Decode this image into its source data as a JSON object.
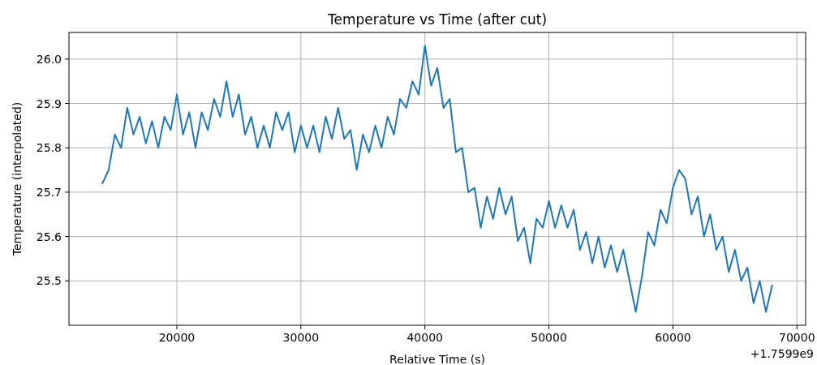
{
  "chart_data": {
    "type": "line",
    "title": "Temperature vs Time (after cut)",
    "xlabel": "Relative Time (s)",
    "ylabel": "Temperature (interpolated)",
    "annotations": [
      "+1.7599e9"
    ],
    "x": [
      14000,
      14500,
      15000,
      15500,
      16000,
      16500,
      17000,
      17500,
      18000,
      18500,
      19000,
      19500,
      20000,
      20500,
      21000,
      21500,
      22000,
      22500,
      23000,
      23500,
      24000,
      24500,
      25000,
      25500,
      26000,
      26500,
      27000,
      27500,
      28000,
      28500,
      29000,
      29500,
      30000,
      30500,
      31000,
      31500,
      32000,
      32500,
      33000,
      33500,
      34000,
      34500,
      35000,
      35500,
      36000,
      36500,
      37000,
      37500,
      38000,
      38500,
      39000,
      39500,
      40000,
      40500,
      41000,
      41500,
      42000,
      42500,
      43000,
      43500,
      44000,
      44500,
      45000,
      45500,
      46000,
      46500,
      47000,
      47500,
      48000,
      48500,
      49000,
      49500,
      50000,
      50500,
      51000,
      51500,
      52000,
      52500,
      53000,
      53500,
      54000,
      54500,
      55000,
      55500,
      56000,
      56500,
      57000,
      57500,
      58000,
      58500,
      59000,
      59500,
      60000,
      60500,
      61000,
      61500,
      62000,
      62500,
      63000,
      63500,
      64000,
      64500,
      65000,
      65500,
      66000,
      66500,
      67000,
      67500,
      68000
    ],
    "series": [
      {
        "color": "#1f77b4",
        "values": [
          25.72,
          25.75,
          25.83,
          25.8,
          25.89,
          25.83,
          25.87,
          25.81,
          25.86,
          25.8,
          25.87,
          25.84,
          25.92,
          25.83,
          25.88,
          25.8,
          25.88,
          25.84,
          25.91,
          25.87,
          25.95,
          25.87,
          25.92,
          25.83,
          25.87,
          25.8,
          25.85,
          25.8,
          25.88,
          25.84,
          25.88,
          25.79,
          25.85,
          25.8,
          25.85,
          25.79,
          25.87,
          25.82,
          25.89,
          25.82,
          25.84,
          25.75,
          25.83,
          25.79,
          25.85,
          25.8,
          25.87,
          25.83,
          25.91,
          25.89,
          25.95,
          25.92,
          26.03,
          25.94,
          25.98,
          25.89,
          25.91,
          25.79,
          25.8,
          25.7,
          25.71,
          25.62,
          25.69,
          25.64,
          25.71,
          25.65,
          25.69,
          25.59,
          25.62,
          25.54,
          25.64,
          25.62,
          25.68,
          25.62,
          25.67,
          25.62,
          25.66,
          25.57,
          25.61,
          25.54,
          25.6,
          25.53,
          25.58,
          25.52,
          25.57,
          25.5,
          25.43,
          25.51,
          25.61,
          25.58,
          25.66,
          25.63,
          25.71,
          25.75,
          25.73,
          25.65,
          25.69,
          25.6,
          25.65,
          25.57,
          25.6,
          25.52,
          25.57,
          25.5,
          25.53,
          25.45,
          25.5,
          25.43,
          25.49
        ]
      }
    ],
    "xlim": [
      11300,
      70700
    ],
    "xticks": [
      20000,
      30000,
      40000,
      50000,
      60000,
      70000
    ],
    "ylim": [
      25.4,
      26.06
    ],
    "yticks": [
      {
        "value": 25.5,
        "label": "25.5"
      },
      {
        "value": 25.6,
        "label": "25.6"
      },
      {
        "value": 25.7,
        "label": "25.7"
      },
      {
        "value": 25.8,
        "label": "25.8"
      },
      {
        "value": 25.9,
        "label": "25.9"
      },
      {
        "value": 26.0,
        "label": "26.0"
      }
    ],
    "grid": true,
    "marker": "none",
    "line_style": "solid"
  }
}
